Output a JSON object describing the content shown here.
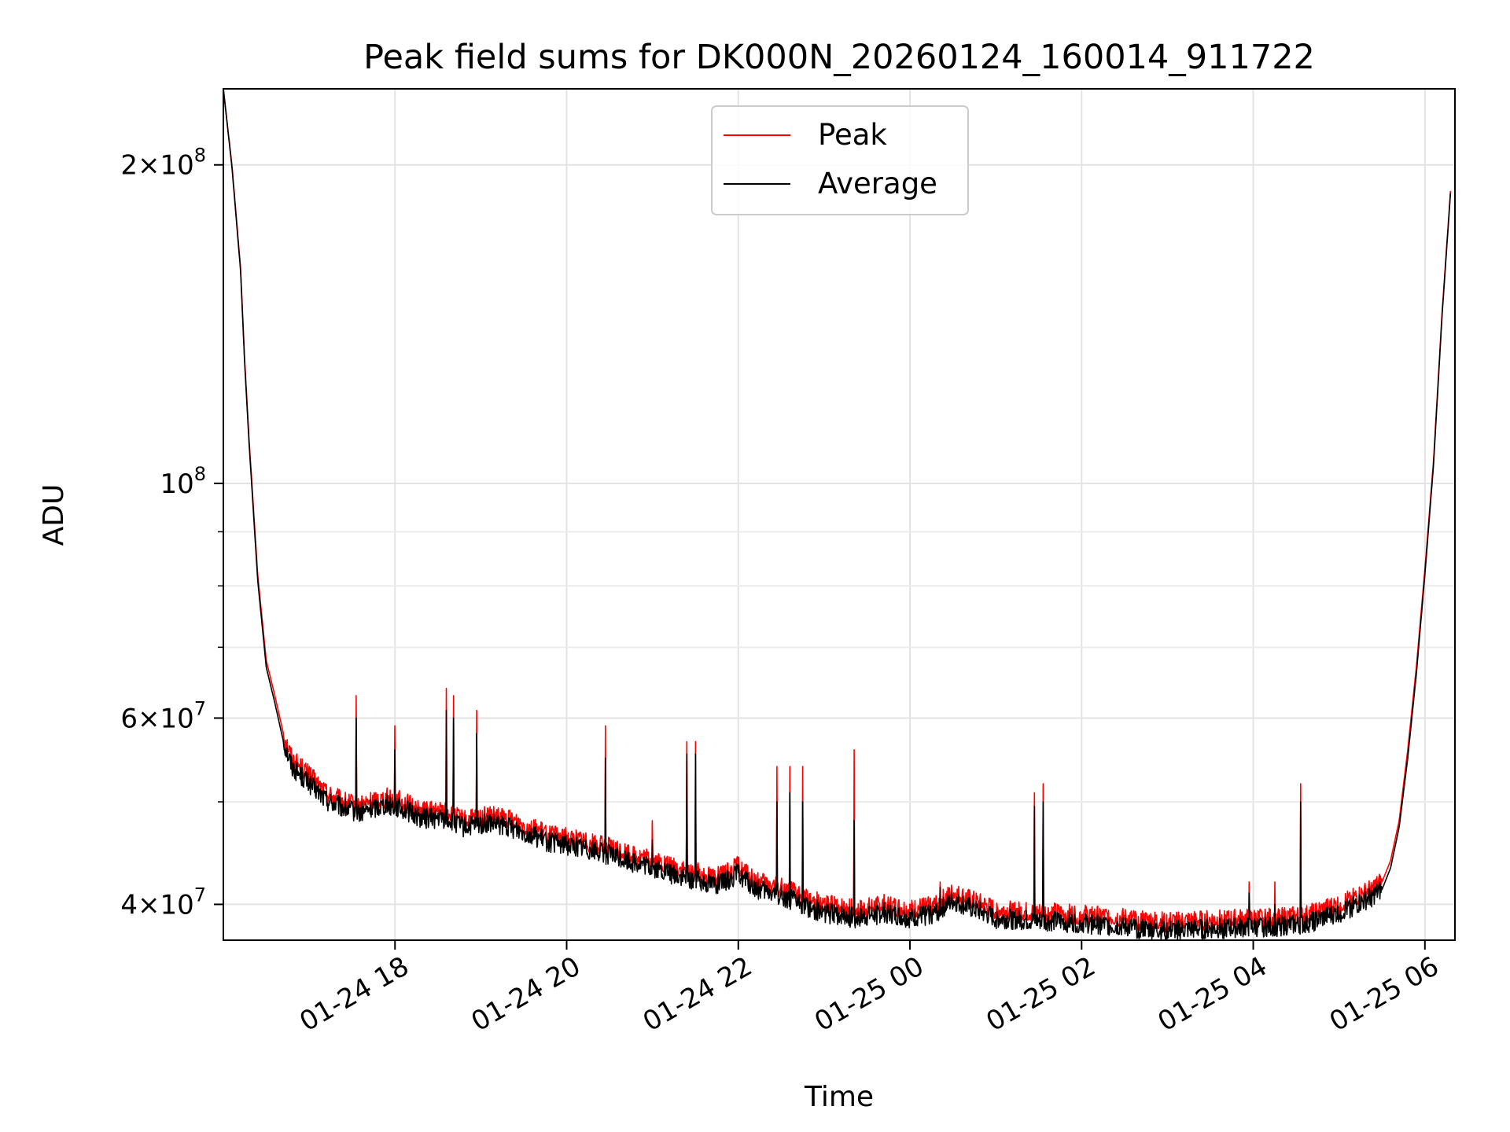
{
  "chart_data": {
    "type": "line",
    "title": "Peak field sums for DK000N_20260124_160014_911722",
    "xlabel": "Time",
    "ylabel": "ADU",
    "yscale": "log",
    "ylim": [
      37000000,
      236000000
    ],
    "xlim_hours": [
      16.0,
      30.35
    ],
    "grid": true,
    "legend_position": "upper center",
    "colors": {
      "Peak": "#ff0000",
      "Average": "#000000"
    },
    "x_ticks": [
      {
        "hour": 18,
        "label": "01-24 18"
      },
      {
        "hour": 20,
        "label": "01-24 20"
      },
      {
        "hour": 22,
        "label": "01-24 22"
      },
      {
        "hour": 24,
        "label": "01-25 00"
      },
      {
        "hour": 26,
        "label": "01-25 02"
      },
      {
        "hour": 28,
        "label": "01-25 04"
      },
      {
        "hour": 30,
        "label": "01-25 06"
      }
    ],
    "y_ticks": [
      {
        "value": 200000000,
        "mantissa": "2",
        "exp": "8"
      },
      {
        "value": 100000000,
        "mantissa": "",
        "exp": "8"
      },
      {
        "value": 60000000,
        "mantissa": "6",
        "exp": "7"
      },
      {
        "value": 40000000,
        "mantissa": "4",
        "exp": "7"
      }
    ],
    "y_minor_ticks": [
      50000000,
      70000000,
      80000000,
      90000000
    ],
    "series": [
      {
        "name": "Peak",
        "color": "#ff0000",
        "x": [
          16.0,
          16.1,
          16.2,
          16.25,
          16.3,
          16.35,
          16.4,
          16.5,
          16.6,
          16.7,
          16.8,
          17.0,
          17.2,
          17.4,
          17.6,
          17.7,
          17.9,
          18.1,
          18.3,
          18.6,
          18.8,
          19.1,
          19.4,
          19.8,
          20.2,
          20.6,
          21.0,
          21.4,
          21.8,
          22.0,
          22.2,
          22.5,
          22.8,
          23.0,
          23.4,
          23.7,
          24.0,
          24.3,
          24.5,
          25.0,
          25.4,
          25.8,
          26.2,
          26.6,
          27.0,
          27.4,
          27.8,
          28.2,
          28.6,
          29.0,
          29.3,
          29.5,
          29.6,
          29.7,
          29.8,
          29.9,
          30.0,
          30.1,
          30.2,
          30.3
        ],
        "y": [
          236000000,
          200000000,
          160000000,
          130000000,
          110000000,
          95000000,
          82000000,
          68000000,
          63000000,
          58000000,
          55000000,
          53000000,
          51000000,
          50000000,
          49500000,
          50000000,
          50500000,
          50000000,
          49000000,
          49000000,
          48000000,
          48500000,
          48000000,
          46500000,
          46000000,
          45000000,
          44000000,
          43000000,
          42500000,
          43500000,
          42000000,
          41500000,
          40500000,
          40000000,
          39500000,
          40000000,
          39500000,
          40000000,
          41000000,
          39500000,
          39300000,
          39200000,
          39000000,
          38700000,
          38500000,
          38600000,
          38700000,
          38800000,
          39000000,
          40000000,
          41000000,
          42000000,
          44000000,
          48000000,
          56000000,
          67000000,
          83000000,
          105000000,
          145000000,
          190000000
        ]
      },
      {
        "name": "Average",
        "color": "#000000",
        "x": [
          16.0,
          16.1,
          16.2,
          16.25,
          16.3,
          16.35,
          16.4,
          16.5,
          16.6,
          16.7,
          16.8,
          17.0,
          17.2,
          17.4,
          17.6,
          17.7,
          17.9,
          18.1,
          18.3,
          18.6,
          18.8,
          19.1,
          19.4,
          19.8,
          20.2,
          20.6,
          21.0,
          21.4,
          21.8,
          22.0,
          22.2,
          22.5,
          22.8,
          23.0,
          23.4,
          23.7,
          24.0,
          24.3,
          24.5,
          25.0,
          25.4,
          25.8,
          26.2,
          26.6,
          27.0,
          27.4,
          27.8,
          28.2,
          28.6,
          29.0,
          29.3,
          29.5,
          29.6,
          29.7,
          29.8,
          29.9,
          30.0,
          30.1,
          30.2,
          30.3
        ],
        "y": [
          236000000,
          199000000,
          159000000,
          129000000,
          109000000,
          94000000,
          81000000,
          67000000,
          62000000,
          57000000,
          54000000,
          52000000,
          50200000,
          49300000,
          48800000,
          49200000,
          49800000,
          49200000,
          48300000,
          48200000,
          47300000,
          47700000,
          47200000,
          45800000,
          45300000,
          44300000,
          43300000,
          42300000,
          41800000,
          42800000,
          41300000,
          40800000,
          39800000,
          39300000,
          38800000,
          39300000,
          38800000,
          39300000,
          40300000,
          38800000,
          38600000,
          38500000,
          38300000,
          38000000,
          37800000,
          37900000,
          38000000,
          38100000,
          38300000,
          39300000,
          40300000,
          41300000,
          43300000,
          47300000,
          55000000,
          66000000,
          82000000,
          104000000,
          144000000,
          189000000
        ]
      }
    ],
    "spikes": [
      {
        "hour": 17.55,
        "peak": 63000000,
        "average": 60000000
      },
      {
        "hour": 17.0,
        "peak": 54000000,
        "average": 52000000
      },
      {
        "hour": 18.0,
        "peak": 59000000,
        "average": 56000000
      },
      {
        "hour": 18.6,
        "peak": 64000000,
        "average": 61000000
      },
      {
        "hour": 18.68,
        "peak": 63000000,
        "average": 60000000
      },
      {
        "hour": 18.95,
        "peak": 61000000,
        "average": 58000000
      },
      {
        "hour": 20.45,
        "peak": 59000000,
        "average": 55000000
      },
      {
        "hour": 21.0,
        "peak": 48000000,
        "average": 46000000
      },
      {
        "hour": 21.4,
        "peak": 57000000,
        "average": 55500000
      },
      {
        "hour": 21.5,
        "peak": 57000000,
        "average": 55500000
      },
      {
        "hour": 22.45,
        "peak": 54000000,
        "average": 50000000
      },
      {
        "hour": 22.6,
        "peak": 54000000,
        "average": 51000000
      },
      {
        "hour": 22.75,
        "peak": 54000000,
        "average": 50000000
      },
      {
        "hour": 23.35,
        "peak": 56000000,
        "average": 48000000
      },
      {
        "hour": 24.35,
        "peak": 42000000,
        "average": 41500000
      },
      {
        "hour": 25.45,
        "peak": 51000000,
        "average": 49500000
      },
      {
        "hour": 25.55,
        "peak": 52000000,
        "average": 50000000
      },
      {
        "hour": 27.95,
        "peak": 42000000,
        "average": 41000000
      },
      {
        "hour": 28.25,
        "peak": 42000000,
        "average": 40000000
      },
      {
        "hour": 28.55,
        "peak": 52000000,
        "average": 50000000
      }
    ]
  }
}
